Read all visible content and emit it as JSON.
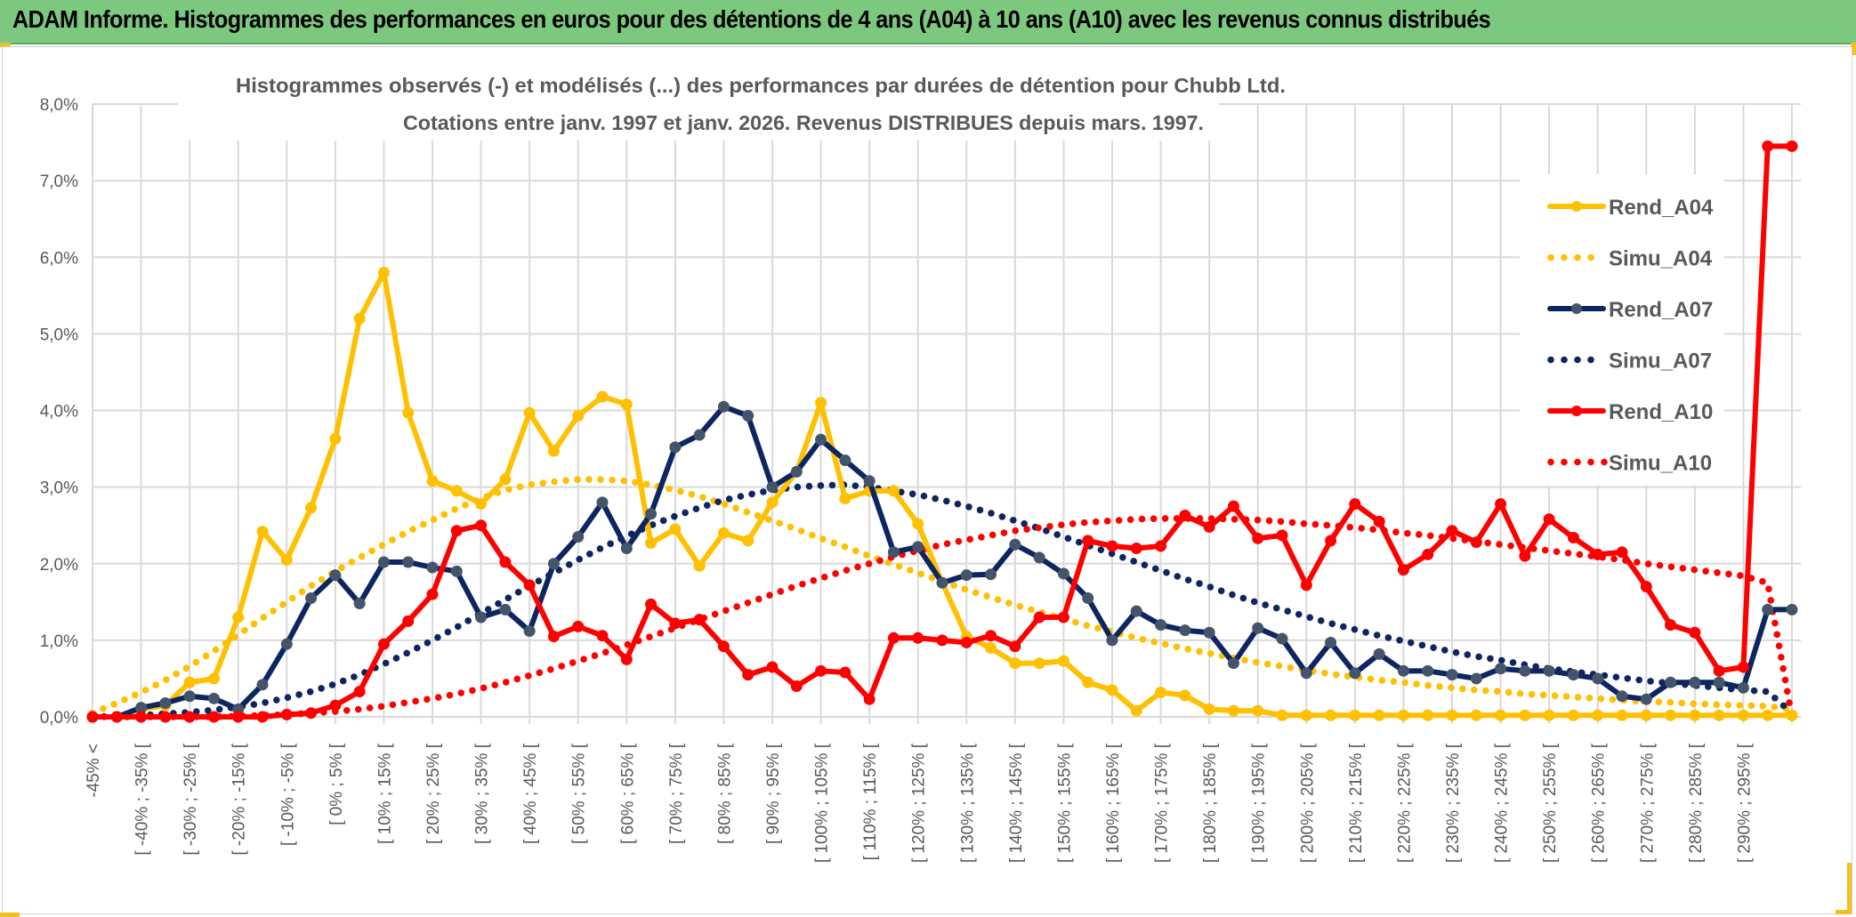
{
  "banner": {
    "title": "ADAM Informe. Histogrammes des performances en euros pour des détentions de 4 ans (A04) à 10 ans (A10) avec les revenus connus distribués"
  },
  "chart_data": {
    "type": "line",
    "title_line1": "Histogrammes observés (-) et modélisés (...) des performances par durées de détention pour Chubb Ltd.",
    "title_line2": "Cotations entre janv. 1997 et janv. 2026. Revenus DISTRIBUES depuis mars. 1997.",
    "xlabel": "",
    "ylabel": "",
    "ylim": [
      0,
      8
    ],
    "y_ticks": [
      "0,0%",
      "1,0%",
      "2,0%",
      "3,0%",
      "4,0%",
      "5,0%",
      "6,0%",
      "7,0%",
      "8,0%"
    ],
    "x_tick_labels": [
      "-45% <",
      "[ -40% ; -35% [",
      "[ -30% ; -25% [",
      "[ -20% ; -15% [",
      "[ -10% ; -5% [",
      "[ 0% ; 5% [",
      "[ 10% ; 15% [",
      "[ 20% ; 25% [",
      "[ 30% ; 35% [",
      "[ 40% ; 45% [",
      "[ 50% ; 55% [",
      "[ 60% ; 65% [",
      "[ 70% ; 75% [",
      "[ 80% ; 85% [",
      "[ 90% ; 95% [",
      "[ 100% ; 105% [",
      "[ 110% ; 115% [",
      "[ 120% ; 125% [",
      "[ 130% ; 135% [",
      "[ 140% ; 145% [",
      "[ 150% ; 155% [",
      "[ 160% ; 165% [",
      "[ 170% ; 175% [",
      "[ 180% ; 185% [",
      "[ 190% ; 195% [",
      "[ 200% ; 205% [",
      "[ 210% ; 215% [",
      "[ 220% ; 225% [",
      "[ 230% ; 235% [",
      "[ 240% ; 245% [",
      "[ 250% ; 255% [",
      "[ 260% ; 265% [",
      "[ 270% ; 275% [",
      "[ 280% ; 285% [",
      "[ 290% ; 295% ["
    ],
    "point_count": 71,
    "grid": true,
    "legend_position": "right",
    "series": [
      {
        "name": "Rend_A04",
        "style": "solid",
        "color": "#ffc000",
        "marker": "#ffc000",
        "values": [
          0,
          0,
          0.1,
          0.15,
          0.45,
          0.5,
          1.3,
          2.42,
          2.05,
          2.73,
          3.63,
          5.2,
          5.8,
          3.97,
          3.08,
          2.95,
          2.78,
          3.1,
          3.97,
          3.47,
          3.93,
          4.18,
          4.08,
          2.27,
          2.45,
          1.97,
          2.4,
          2.3,
          2.8,
          3.2,
          4.1,
          2.85,
          2.95,
          2.95,
          2.52,
          1.75,
          1.05,
          0.9,
          0.7,
          0.7,
          0.73,
          0.45,
          0.35,
          0.08,
          0.32,
          0.28,
          0.1,
          0.08,
          0.08,
          0.02,
          0.02,
          0.02,
          0.02,
          0.02,
          0.02,
          0.02,
          0.02,
          0.02,
          0.02,
          0.02,
          0.02,
          0.02,
          0.02,
          0.02,
          0.02,
          0.02,
          0.02,
          0.02,
          0.02,
          0.02,
          0.02
        ]
      },
      {
        "name": "Simu_A04",
        "style": "dotted",
        "color": "#ffc000",
        "values": [
          0.05,
          0.18,
          0.32,
          0.48,
          0.66,
          0.86,
          1.07,
          1.29,
          1.5,
          1.71,
          1.9,
          2.08,
          2.25,
          2.42,
          2.57,
          2.72,
          2.85,
          2.96,
          3.03,
          3.07,
          3.1,
          3.1,
          3.08,
          3.03,
          2.96,
          2.88,
          2.78,
          2.67,
          2.56,
          2.45,
          2.33,
          2.22,
          2.1,
          1.99,
          1.88,
          1.77,
          1.66,
          1.56,
          1.46,
          1.37,
          1.28,
          1.19,
          1.11,
          1.03,
          0.96,
          0.89,
          0.83,
          0.77,
          0.71,
          0.66,
          0.61,
          0.56,
          0.52,
          0.48,
          0.45,
          0.41,
          0.38,
          0.35,
          0.33,
          0.3,
          0.28,
          0.26,
          0.24,
          0.22,
          0.2,
          0.19,
          0.17,
          0.16,
          0.15,
          0.14,
          0.1
        ]
      },
      {
        "name": "Rend_A07",
        "style": "solid",
        "color": "#0d2560",
        "marker": "#44546a",
        "values": [
          0,
          0,
          0.12,
          0.18,
          0.27,
          0.24,
          0.1,
          0.42,
          0.95,
          1.55,
          1.85,
          1.48,
          2.02,
          2.02,
          1.95,
          1.9,
          1.3,
          1.4,
          1.12,
          2.0,
          2.35,
          2.8,
          2.2,
          2.65,
          3.52,
          3.68,
          4.05,
          3.93,
          3.0,
          3.2,
          3.62,
          3.35,
          3.08,
          2.15,
          2.22,
          1.75,
          1.85,
          1.86,
          2.25,
          2.08,
          1.87,
          1.55,
          1.0,
          1.38,
          1.2,
          1.13,
          1.1,
          0.7,
          1.16,
          1.02,
          0.57,
          0.97,
          0.57,
          0.82,
          0.6,
          0.6,
          0.55,
          0.5,
          0.63,
          0.6,
          0.6,
          0.55,
          0.5,
          0.27,
          0.23,
          0.45,
          0.45,
          0.45,
          0.38,
          1.4,
          1.4
        ]
      },
      {
        "name": "Simu_A07",
        "style": "dotted",
        "color": "#0d2560",
        "values": [
          0,
          0.01,
          0.02,
          0.04,
          0.06,
          0.09,
          0.13,
          0.18,
          0.25,
          0.33,
          0.43,
          0.55,
          0.69,
          0.84,
          1.0,
          1.17,
          1.35,
          1.53,
          1.71,
          1.88,
          2.05,
          2.21,
          2.36,
          2.5,
          2.62,
          2.73,
          2.83,
          2.9,
          2.96,
          3.0,
          3.02,
          3.03,
          3.0,
          2.95,
          2.9,
          2.83,
          2.75,
          2.66,
          2.56,
          2.46,
          2.35,
          2.24,
          2.13,
          2.02,
          1.91,
          1.8,
          1.7,
          1.59,
          1.49,
          1.4,
          1.31,
          1.22,
          1.14,
          1.06,
          0.99,
          0.92,
          0.85,
          0.79,
          0.74,
          0.68,
          0.63,
          0.59,
          0.55,
          0.51,
          0.47,
          0.44,
          0.41,
          0.38,
          0.35,
          0.33,
          0.05
        ]
      },
      {
        "name": "Rend_A10",
        "style": "solid",
        "color": "#ff0000",
        "marker": "#ff0000",
        "values": [
          0,
          0,
          0,
          0,
          0,
          0,
          0,
          0,
          0.03,
          0.05,
          0.15,
          0.33,
          0.95,
          1.25,
          1.6,
          2.43,
          2.5,
          2.02,
          1.72,
          1.05,
          1.18,
          1.06,
          0.75,
          1.47,
          1.22,
          1.27,
          0.92,
          0.55,
          0.65,
          0.4,
          0.6,
          0.58,
          0.23,
          1.03,
          1.03,
          1.0,
          0.97,
          1.06,
          0.92,
          1.3,
          1.3,
          2.3,
          2.23,
          2.2,
          2.23,
          2.63,
          2.48,
          2.75,
          2.33,
          2.37,
          1.72,
          2.3,
          2.78,
          2.55,
          1.92,
          2.12,
          2.43,
          2.28,
          2.78,
          2.1,
          2.58,
          2.34,
          2.12,
          2.15,
          1.7,
          1.2,
          1.1,
          0.6,
          0.65,
          7.45,
          7.45
        ]
      },
      {
        "name": "Simu_A10",
        "style": "dotted",
        "color": "#ff0000",
        "values": [
          0,
          0,
          0,
          0,
          0,
          0,
          0.01,
          0.02,
          0.03,
          0.05,
          0.07,
          0.1,
          0.14,
          0.19,
          0.24,
          0.3,
          0.37,
          0.45,
          0.54,
          0.63,
          0.73,
          0.83,
          0.94,
          1.05,
          1.16,
          1.27,
          1.38,
          1.49,
          1.6,
          1.71,
          1.81,
          1.91,
          2.0,
          2.09,
          2.17,
          2.25,
          2.31,
          2.37,
          2.43,
          2.47,
          2.51,
          2.54,
          2.56,
          2.58,
          2.59,
          2.59,
          2.59,
          2.58,
          2.57,
          2.55,
          2.52,
          2.5,
          2.47,
          2.44,
          2.4,
          2.37,
          2.33,
          2.29,
          2.25,
          2.21,
          2.17,
          2.13,
          2.09,
          2.05,
          2.0,
          1.96,
          1.92,
          1.88,
          1.84,
          1.75,
          0.0
        ]
      }
    ]
  }
}
